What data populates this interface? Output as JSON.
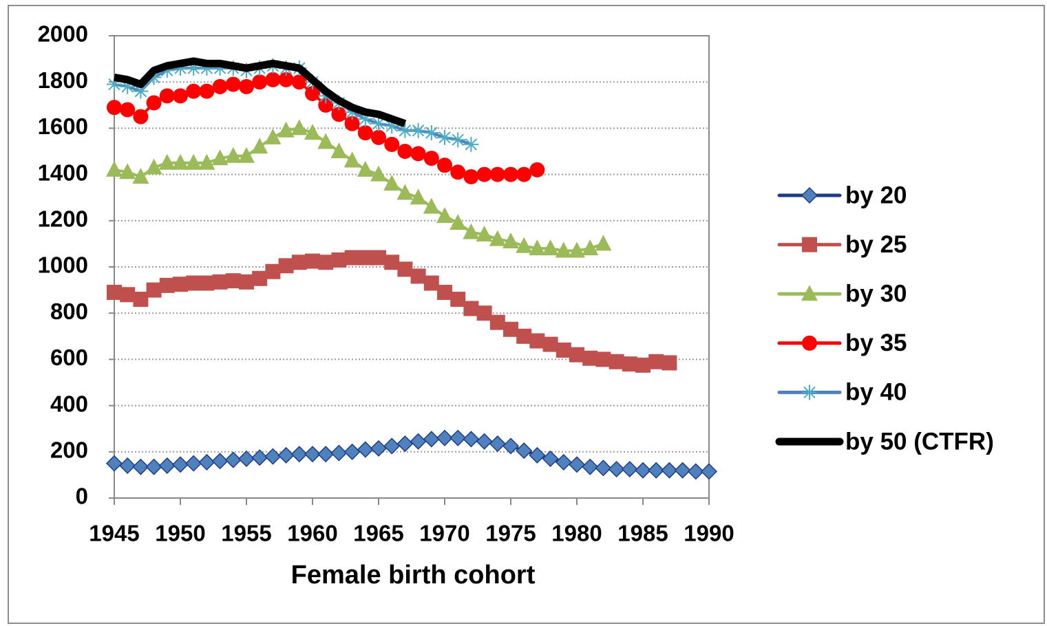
{
  "chart_data": {
    "type": "line",
    "xlabel": "Female birth cohort",
    "x": [
      1945,
      1946,
      1947,
      1948,
      1949,
      1950,
      1951,
      1952,
      1953,
      1954,
      1955,
      1956,
      1957,
      1958,
      1959,
      1960,
      1961,
      1962,
      1963,
      1964,
      1965,
      1966,
      1967,
      1968,
      1969,
      1970,
      1971,
      1972,
      1973,
      1974,
      1975,
      1976,
      1977,
      1978,
      1979,
      1980,
      1981,
      1982,
      1983,
      1984,
      1985,
      1986,
      1987,
      1988,
      1989,
      1990
    ],
    "xlim": [
      1945,
      1990
    ],
    "xticks": [
      1945,
      1950,
      1955,
      1960,
      1965,
      1970,
      1975,
      1980,
      1985,
      1990
    ],
    "ylim": [
      0,
      2000
    ],
    "yticks": [
      0,
      200,
      400,
      600,
      800,
      1000,
      1200,
      1400,
      1600,
      1800,
      2000
    ],
    "grid": true,
    "legend": "right",
    "series": [
      {
        "name": "by 20",
        "color": "#1f3c88",
        "marker_color": "#4f81bd",
        "marker": "diamond",
        "values": [
          150,
          140,
          135,
          135,
          140,
          145,
          150,
          155,
          160,
          165,
          170,
          175,
          180,
          185,
          190,
          190,
          190,
          195,
          200,
          210,
          215,
          225,
          235,
          245,
          255,
          260,
          260,
          255,
          245,
          235,
          225,
          205,
          185,
          170,
          155,
          145,
          135,
          130,
          125,
          125,
          120,
          120,
          120,
          120,
          115,
          115
        ]
      },
      {
        "name": "by 25",
        "color": "#c0504d",
        "marker_color": "#c0504d",
        "marker": "square",
        "values": [
          890,
          880,
          860,
          900,
          920,
          925,
          930,
          930,
          935,
          940,
          935,
          950,
          980,
          1005,
          1020,
          1025,
          1020,
          1030,
          1040,
          1040,
          1040,
          1020,
          990,
          960,
          930,
          890,
          860,
          820,
          800,
          760,
          730,
          700,
          680,
          665,
          640,
          620,
          605,
          600,
          590,
          580,
          575,
          590,
          585,
          null,
          null,
          null
        ]
      },
      {
        "name": "by 30",
        "color": "#9bbb59",
        "marker_color": "#9bbb59",
        "marker": "triangle",
        "values": [
          1420,
          1410,
          1390,
          1430,
          1450,
          1450,
          1450,
          1450,
          1470,
          1480,
          1480,
          1520,
          1560,
          1590,
          1600,
          1580,
          1540,
          1500,
          1460,
          1420,
          1400,
          1360,
          1320,
          1300,
          1260,
          1220,
          1190,
          1150,
          1140,
          1120,
          1110,
          1090,
          1080,
          1080,
          1070,
          1070,
          1080,
          1100,
          null,
          null,
          null,
          null,
          null,
          null,
          null,
          null
        ]
      },
      {
        "name": "by 35",
        "color": "#ff0000",
        "marker_color": "#ff0000",
        "marker": "circle",
        "values": [
          1690,
          1680,
          1650,
          1710,
          1740,
          1740,
          1760,
          1760,
          1780,
          1790,
          1780,
          1800,
          1810,
          1810,
          1800,
          1750,
          1700,
          1660,
          1620,
          1580,
          1560,
          1530,
          1500,
          1490,
          1470,
          1440,
          1410,
          1390,
          1400,
          1400,
          1400,
          1400,
          1420,
          null,
          null,
          null,
          null,
          null,
          null,
          null,
          null,
          null,
          null,
          null,
          null,
          null
        ]
      },
      {
        "name": "by 40",
        "color": "#4f81bd",
        "marker_color": "#4bacc6",
        "marker": "star",
        "values": [
          1790,
          1780,
          1760,
          1820,
          1850,
          1860,
          1860,
          1860,
          1860,
          1860,
          1850,
          1860,
          1870,
          1860,
          1860,
          1800,
          1740,
          1710,
          1670,
          1640,
          1620,
          1610,
          1590,
          1590,
          1580,
          1560,
          1550,
          1530,
          null,
          null,
          null,
          null,
          null,
          null,
          null,
          null,
          null,
          null,
          null,
          null,
          null,
          null,
          null,
          null,
          null,
          null
        ]
      },
      {
        "name": "by 50 (CTFR)",
        "color": "#000000",
        "marker_color": "#000000",
        "marker": "none",
        "values": [
          1820,
          1810,
          1790,
          1850,
          1870,
          1880,
          1890,
          1880,
          1880,
          1870,
          1860,
          1870,
          1880,
          1870,
          1860,
          1810,
          1760,
          1720,
          1690,
          1670,
          1660,
          1640,
          1620,
          null,
          null,
          null,
          null,
          null,
          null,
          null,
          null,
          null,
          null,
          null,
          null,
          null,
          null,
          null,
          null,
          null,
          null,
          null,
          null,
          null,
          null,
          null
        ]
      }
    ]
  }
}
